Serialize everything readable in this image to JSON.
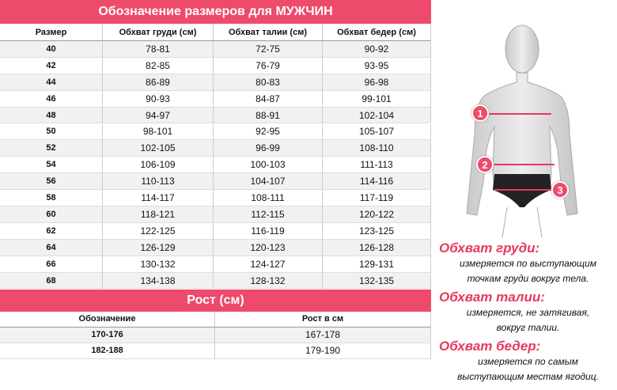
{
  "header": {
    "title": "Обозначение размеров для МУЖЧИН"
  },
  "table": {
    "columns": [
      "Размер",
      "Обхват груди (см)",
      "Обхват талии (см)",
      "Обхват бедер (см)"
    ],
    "rows": [
      [
        "40",
        "78-81",
        "72-75",
        "90-92"
      ],
      [
        "42",
        "82-85",
        "76-79",
        "93-95"
      ],
      [
        "44",
        "86-89",
        "80-83",
        "96-98"
      ],
      [
        "46",
        "90-93",
        "84-87",
        "99-101"
      ],
      [
        "48",
        "94-97",
        "88-91",
        "102-104"
      ],
      [
        "50",
        "98-101",
        "92-95",
        "105-107"
      ],
      [
        "52",
        "102-105",
        "96-99",
        "108-110"
      ],
      [
        "54",
        "106-109",
        "100-103",
        "111-113"
      ],
      [
        "56",
        "110-113",
        "104-107",
        "114-116"
      ],
      [
        "58",
        "114-117",
        "108-111",
        "117-119"
      ],
      [
        "60",
        "118-121",
        "112-115",
        "120-122"
      ],
      [
        "62",
        "122-125",
        "116-119",
        "123-125"
      ],
      [
        "64",
        "126-129",
        "120-123",
        "126-128"
      ],
      [
        "66",
        "130-132",
        "124-127",
        "129-131"
      ],
      [
        "68",
        "134-138",
        "128-132",
        "132-135"
      ]
    ]
  },
  "height": {
    "title": "Рост (см)",
    "columns": [
      "Обозначение",
      "Рост в см"
    ],
    "rows": [
      [
        "170-176",
        "167-178"
      ],
      [
        "182-188",
        "179-190"
      ]
    ]
  },
  "figure": {
    "markers": [
      "1",
      "2",
      "3"
    ]
  },
  "notes": [
    {
      "title": "Обхват груди:",
      "lines": [
        "измеряется по выступающим",
        "точкам груди вокруг тела."
      ]
    },
    {
      "title": "Обхват талии:",
      "lines": [
        "измеряется, не затягивая,",
        "вокруг талии."
      ]
    },
    {
      "title": "Обхват бедер:",
      "lines": [
        "измеряется по самым",
        "выступающим местам ягодиц."
      ]
    }
  ]
}
